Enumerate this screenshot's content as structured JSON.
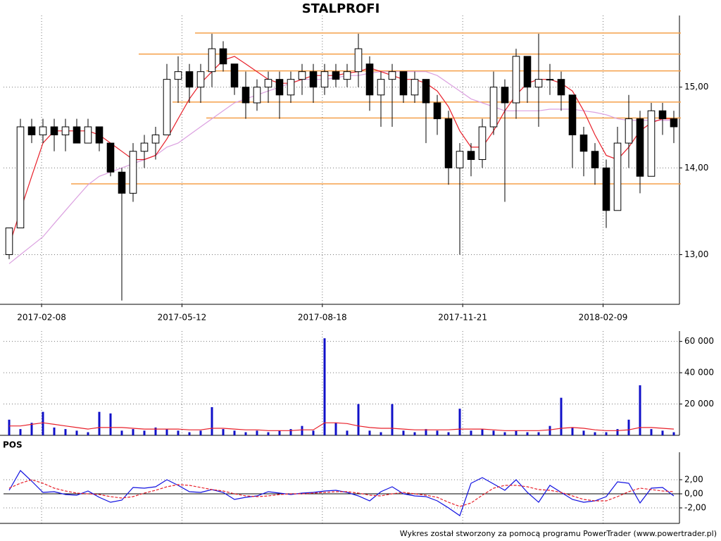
{
  "chart_data": [
    {
      "type": "candlestick",
      "title": "STALPROFI",
      "log_scale": true,
      "grid": true,
      "ylim": [
        12.46,
        15.87
      ],
      "yticks": [
        {
          "value": 13,
          "label": "13,00"
        },
        {
          "value": 14,
          "label": "14,00"
        },
        {
          "value": 15,
          "label": "15,00"
        }
      ],
      "xticks": [
        {
          "value": 3.38,
          "label": "2017-02-08"
        },
        {
          "value": 15.84,
          "label": "2017-05-12"
        },
        {
          "value": 28.3,
          "label": "2017-08-18"
        },
        {
          "value": 40.76,
          "label": "2017-11-21"
        },
        {
          "value": 53.22,
          "label": "2018-02-09"
        }
      ],
      "up_color": "#ffffff",
      "down_color": "#000000",
      "open": [
        13.0,
        13.3,
        14.5,
        14.4,
        14.5,
        14.4,
        14.5,
        14.3,
        14.5,
        14.3,
        13.95,
        13.7,
        14.2,
        14.3,
        14.4,
        15.1,
        15.2,
        15.0,
        15.2,
        15.5,
        15.3,
        15.0,
        14.8,
        15.0,
        15.1,
        14.9,
        15.1,
        15.2,
        15.0,
        15.2,
        15.1,
        15.2,
        15.3,
        14.9,
        15.1,
        15.2,
        14.9,
        15.1,
        14.8,
        14.6,
        14.0,
        14.2,
        14.1,
        14.5,
        15.0,
        14.8,
        15.4,
        15.0,
        15.1,
        15.1,
        14.9,
        14.4,
        14.2,
        14.0,
        13.5,
        14.3,
        14.6,
        13.9,
        14.7,
        14.6
      ],
      "high": [
        13.3,
        14.6,
        14.6,
        14.6,
        14.6,
        14.6,
        14.6,
        14.6,
        14.5,
        14.3,
        14.0,
        14.3,
        14.4,
        14.5,
        15.3,
        15.4,
        15.3,
        15.3,
        15.7,
        15.6,
        15.3,
        15.2,
        15.1,
        15.2,
        15.2,
        15.2,
        15.3,
        15.3,
        15.3,
        15.3,
        15.3,
        15.7,
        15.4,
        15.2,
        15.3,
        15.2,
        15.2,
        15.1,
        14.9,
        14.7,
        14.3,
        14.3,
        14.6,
        15.2,
        15.1,
        15.5,
        15.4,
        15.7,
        15.3,
        15.2,
        14.9,
        14.5,
        14.3,
        14.1,
        14.5,
        14.9,
        14.7,
        14.8,
        14.8,
        14.7
      ],
      "low": [
        12.95,
        13.3,
        14.3,
        14.3,
        14.2,
        14.2,
        14.3,
        14.3,
        14.2,
        13.9,
        12.5,
        13.6,
        14.0,
        14.1,
        14.4,
        14.8,
        14.8,
        14.8,
        15.0,
        15.2,
        14.9,
        14.6,
        14.7,
        14.8,
        14.6,
        14.8,
        14.9,
        14.8,
        14.9,
        15.0,
        15.0,
        15.0,
        14.7,
        14.5,
        14.5,
        14.8,
        14.8,
        14.3,
        14.4,
        13.8,
        13.0,
        13.9,
        14.0,
        14.4,
        13.6,
        14.6,
        14.8,
        14.5,
        14.9,
        14.7,
        14.0,
        13.9,
        13.8,
        13.3,
        13.5,
        14.0,
        13.7,
        13.9,
        14.4,
        14.3
      ],
      "close": [
        13.3,
        14.5,
        14.4,
        14.5,
        14.4,
        14.5,
        14.3,
        14.5,
        14.3,
        13.95,
        13.7,
        14.2,
        14.3,
        14.4,
        15.1,
        15.2,
        15.0,
        15.2,
        15.5,
        15.3,
        15.0,
        14.8,
        15.0,
        15.1,
        14.9,
        15.1,
        15.2,
        15.0,
        15.2,
        15.1,
        15.2,
        15.5,
        14.9,
        15.1,
        15.2,
        14.9,
        15.1,
        14.8,
        14.6,
        14.0,
        14.2,
        14.1,
        14.5,
        15.0,
        14.8,
        15.4,
        15.0,
        15.1,
        15.1,
        14.9,
        14.4,
        14.2,
        14.0,
        13.5,
        14.3,
        14.6,
        13.9,
        14.7,
        14.6,
        14.5
      ],
      "series": [
        {
          "color": "#e8202a",
          "values": [
            13.1,
            13.5,
            13.9,
            14.3,
            14.45,
            14.45,
            14.45,
            14.45,
            14.4,
            14.3,
            14.2,
            14.1,
            14.1,
            14.15,
            14.35,
            14.6,
            14.85,
            15.05,
            15.2,
            15.35,
            15.4,
            15.3,
            15.2,
            15.1,
            15.05,
            15.05,
            15.1,
            15.15,
            15.15,
            15.15,
            15.18,
            15.2,
            15.25,
            15.2,
            15.15,
            15.1,
            15.1,
            15.05,
            14.95,
            14.75,
            14.45,
            14.25,
            14.25,
            14.45,
            14.7,
            14.9,
            15.05,
            15.1,
            15.1,
            15.05,
            14.95,
            14.7,
            14.4,
            14.15,
            14.1,
            14.25,
            14.45,
            14.55,
            14.6,
            14.6
          ]
        },
        {
          "color": "#dba0e0",
          "values": [
            12.9,
            13.0,
            13.1,
            13.2,
            13.35,
            13.5,
            13.65,
            13.8,
            13.9,
            13.95,
            14.0,
            14.05,
            14.1,
            14.15,
            14.25,
            14.3,
            14.4,
            14.5,
            14.6,
            14.7,
            14.8,
            14.85,
            14.9,
            14.95,
            15.0,
            15.05,
            15.1,
            15.1,
            15.1,
            15.12,
            15.15,
            15.15,
            15.18,
            15.2,
            15.2,
            15.2,
            15.2,
            15.2,
            15.15,
            15.05,
            14.95,
            14.85,
            14.8,
            14.75,
            14.7,
            14.7,
            14.7,
            14.7,
            14.72,
            14.72,
            14.72,
            14.7,
            14.68,
            14.65,
            14.6,
            14.58,
            14.58,
            14.58,
            14.58,
            14.58
          ]
        }
      ],
      "levels": [
        {
          "value": 15.71,
          "start": 17,
          "color": "#f5a04a"
        },
        {
          "value": 15.43,
          "start": 12,
          "color": "#f5a04a"
        },
        {
          "value": 15.21,
          "start": 18,
          "color": "#f5a04a"
        },
        {
          "value": 14.81,
          "start": 15,
          "color": "#f5a04a"
        },
        {
          "value": 14.61,
          "start": 18,
          "color": "#f5a04a"
        },
        {
          "value": 13.81,
          "start": 6,
          "color": "#f5a04a"
        }
      ]
    },
    {
      "type": "bar",
      "grid": true,
      "ylim": [
        0,
        63000
      ],
      "yticks": [
        {
          "value": 20000,
          "label": "20 000"
        },
        {
          "value": 40000,
          "label": "40 000"
        },
        {
          "value": 60000,
          "label": "60 000"
        }
      ],
      "color": "#1010c8",
      "values": [
        10000,
        4000,
        8000,
        15000,
        5000,
        4000,
        3000,
        2000,
        15000,
        14000,
        3000,
        4000,
        3000,
        5000,
        4000,
        3000,
        2000,
        3000,
        18000,
        4000,
        3000,
        2000,
        3000,
        2000,
        3000,
        4000,
        6000,
        3000,
        62000,
        8000,
        3000,
        20000,
        3000,
        2000,
        20000,
        3000,
        2000,
        4000,
        3000,
        2000,
        17000,
        3000,
        4000,
        3000,
        2000,
        3000,
        2000,
        2000,
        6000,
        24000,
        5000,
        3000,
        2000,
        2000,
        4000,
        10000,
        32000,
        4000,
        3000,
        2000
      ],
      "series": [
        {
          "color": "#e8202a",
          "values": [
            6000,
            6000,
            7000,
            8000,
            7000,
            6000,
            5000,
            4000,
            5000,
            5000,
            5000,
            4500,
            4000,
            4000,
            4000,
            4000,
            3500,
            3500,
            4500,
            4500,
            4000,
            3500,
            3500,
            3000,
            3000,
            3000,
            3500,
            3500,
            8000,
            8000,
            7500,
            6000,
            5000,
            4500,
            4500,
            4000,
            3500,
            3500,
            3500,
            3500,
            4000,
            4000,
            4000,
            3500,
            3000,
            3000,
            3000,
            3000,
            3500,
            4500,
            5000,
            4500,
            3500,
            3000,
            3000,
            3500,
            5000,
            5000,
            4500,
            4000
          ]
        }
      ]
    },
    {
      "type": "line",
      "title": "POS",
      "grid": true,
      "zero_line": true,
      "ylim": [
        -4.2,
        5.1
      ],
      "yticks": [
        {
          "value": -2,
          "label": "-2,00"
        },
        {
          "value": 0,
          "label": "0,00"
        },
        {
          "value": 2,
          "label": "2,00"
        }
      ],
      "series": [
        {
          "color": "#1010e0",
          "dashed": false,
          "values": [
            0.5,
            3.3,
            1.8,
            0.2,
            0.3,
            -0.1,
            -0.2,
            0.4,
            -0.5,
            -1.2,
            -0.9,
            0.9,
            0.8,
            1.0,
            2.0,
            1.2,
            0.3,
            0.2,
            0.6,
            0.2,
            -0.8,
            -0.5,
            -0.3,
            0.3,
            0.1,
            -0.1,
            0.1,
            0.2,
            0.4,
            0.5,
            0.2,
            -0.3,
            -1.0,
            0.3,
            1.0,
            0.0,
            -0.3,
            -0.4,
            -1.0,
            -2.0,
            -3.1,
            1.5,
            2.3,
            1.4,
            0.5,
            2.0,
            0.2,
            -1.2,
            1.2,
            0.2,
            -0.8,
            -1.2,
            -1.0,
            -0.4,
            1.7,
            1.5,
            -1.3,
            0.8,
            0.9,
            -0.3
          ]
        },
        {
          "color": "#e8202a",
          "dashed": true,
          "values": [
            0.8,
            1.5,
            2.0,
            1.5,
            0.8,
            0.4,
            0.1,
            0.0,
            -0.1,
            -0.4,
            -0.6,
            -0.4,
            0.1,
            0.5,
            1.0,
            1.3,
            1.2,
            0.9,
            0.6,
            0.4,
            0.0,
            -0.3,
            -0.4,
            -0.3,
            -0.1,
            0.0,
            0.0,
            0.1,
            0.2,
            0.3,
            0.3,
            0.1,
            -0.2,
            -0.3,
            0.0,
            0.2,
            0.0,
            -0.2,
            -0.5,
            -1.2,
            -1.8,
            -1.3,
            -0.2,
            0.8,
            1.2,
            1.2,
            1.0,
            0.6,
            0.5,
            0.2,
            -0.3,
            -0.8,
            -1.0,
            -1.0,
            -0.4,
            0.3,
            0.8,
            0.6,
            0.4,
            0.3
          ]
        }
      ]
    }
  ],
  "footer": "Wykres został stworzony za pomocą programu PowerTrader (www.powertrader.pl)"
}
